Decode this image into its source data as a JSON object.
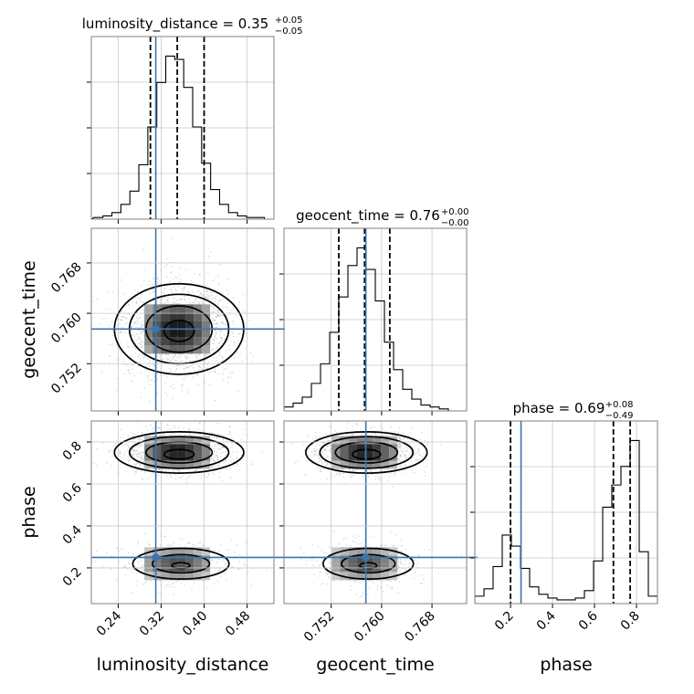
{
  "chart_data": {
    "type": "corner",
    "parameters": [
      "luminosity_distance",
      "geocent_time",
      "phase"
    ],
    "truths": {
      "luminosity_distance": 0.31,
      "geocent_time": 0.7575,
      "phase": 0.25
    },
    "truth_color": "#3b75af",
    "axes": {
      "luminosity_distance": {
        "range": [
          0.19,
          0.53
        ],
        "ticks": [
          0.24,
          0.32,
          0.4,
          0.48
        ],
        "tick_labels": [
          "0.24",
          "0.32",
          "0.40",
          "0.48"
        ],
        "xlabel": "luminosity_distance"
      },
      "geocent_time": {
        "range": [
          0.7445,
          0.7735
        ],
        "ticks": [
          0.752,
          0.76,
          0.768
        ],
        "tick_labels": [
          "0.752",
          "0.760",
          "0.768"
        ],
        "xlabel": "geocent_time",
        "ylabel": "geocent_time"
      },
      "phase": {
        "range": [
          0.03,
          0.9
        ],
        "ticks": [
          0.2,
          0.4,
          0.6,
          0.8
        ],
        "tick_labels": [
          "0.2",
          "0.4",
          "0.6",
          "0.8"
        ],
        "xlabel": "phase",
        "ylabel": "phase"
      }
    },
    "titles": [
      {
        "parameter": "luminosity_distance",
        "main": "luminosity_distance = 0.35",
        "sup": "+0.05",
        "sub": "−0.05",
        "quantiles": [
          0.3,
          0.35,
          0.4
        ]
      },
      {
        "parameter": "geocent_time",
        "main": "geocent_time = 0.76",
        "sup": "+0.00",
        "sub": "−0.00",
        "quantiles": [
          0.7532,
          0.7573,
          0.7613
        ]
      },
      {
        "parameter": "phase",
        "main": "phase = 0.69",
        "sup": "+0.08",
        "sub": "−0.49",
        "quantiles": [
          0.2,
          0.69,
          0.77
        ]
      }
    ],
    "hist_1d": {
      "luminosity_distance": {
        "edges_start": 0.195,
        "bin_width": 0.0167,
        "counts": [
          1,
          2,
          4,
          9,
          17,
          33,
          56,
          83,
          99,
          97,
          80,
          56,
          34,
          18,
          9,
          4,
          2,
          1,
          1,
          0
        ]
      },
      "geocent_time": {
        "edges_start": 0.7445,
        "bin_width": 0.00145,
        "counts": [
          2,
          4,
          7,
          14,
          24,
          40,
          58,
          74,
          83,
          72,
          56,
          35,
          21,
          11,
          6,
          3,
          2,
          1,
          0,
          0
        ]
      },
      "phase": {
        "edges_start": 0.03,
        "bin_width": 0.0435,
        "counts": [
          4,
          8,
          20,
          37,
          31,
          19,
          9,
          5,
          3,
          2,
          2,
          3,
          7,
          23,
          52,
          64,
          74,
          88,
          28,
          4
        ]
      }
    },
    "grid": true,
    "layout": "lower-triangle"
  }
}
